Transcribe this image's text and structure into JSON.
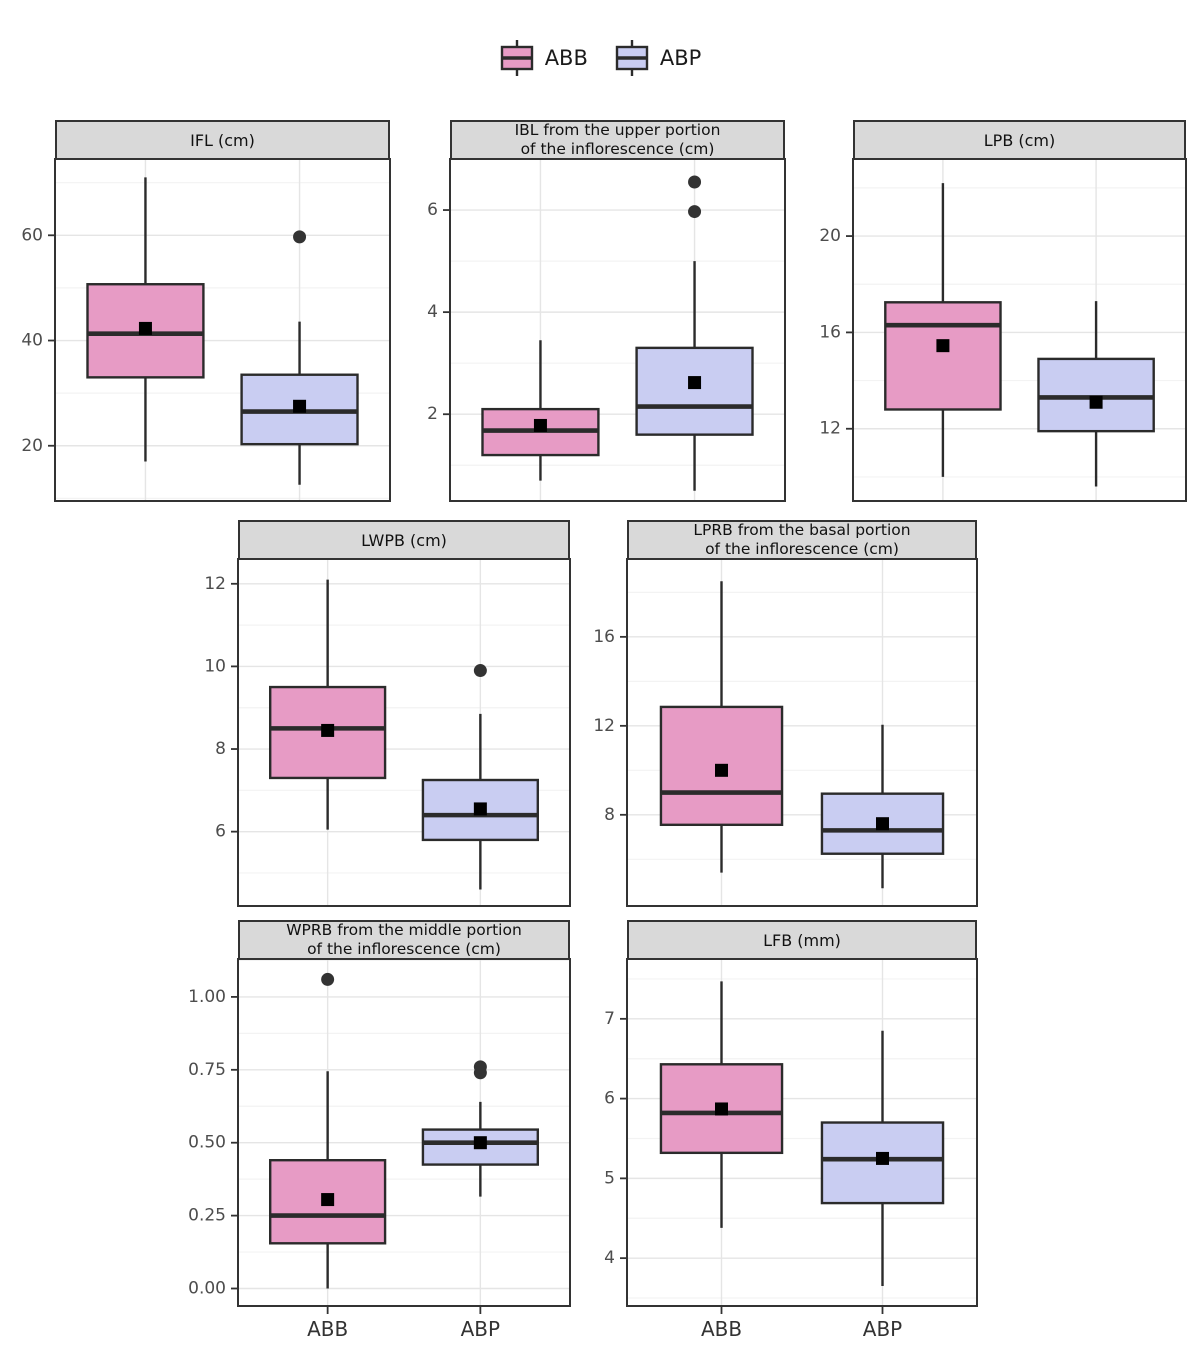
{
  "legend": {
    "items": [
      {
        "label": "ABB",
        "color_key": "abb"
      },
      {
        "label": "ABP",
        "color_key": "abp"
      }
    ]
  },
  "colors": {
    "abb": "#E79BC5",
    "abp": "#C9CDF2",
    "box_stroke": "#2B2B2B",
    "outlier": "#333333",
    "mean_marker": "#000000",
    "strip_bg": "#D9D9D9",
    "panel_border": "#333333",
    "grid_major": "#E5E5E5",
    "grid_minor": "#F3F3F3",
    "tick_label": "#4D4D4D",
    "axis_label": "#333333"
  },
  "chart_data": {
    "type": "boxplot",
    "categories": [
      "ABB",
      "ABP"
    ],
    "panels": [
      {
        "title_lines": [
          "IFL (cm)"
        ],
        "ylim": [
          9.5,
          74.5
        ],
        "yticks": [
          20,
          40,
          60
        ],
        "ytick_labels": [
          "20",
          "40",
          "60"
        ],
        "show_x_labels": false,
        "series": [
          {
            "name": "ABB",
            "color": "abb",
            "whisker_low": 17,
            "q1": 33,
            "median": 41.3,
            "mean": 42.3,
            "q3": 50.7,
            "whisker_high": 71,
            "outliers": []
          },
          {
            "name": "ABP",
            "color": "abp",
            "whisker_low": 12.6,
            "q1": 20.3,
            "median": 26.5,
            "mean": 27.5,
            "q3": 33.5,
            "whisker_high": 43.6,
            "outliers": [
              59.7
            ]
          }
        ]
      },
      {
        "title_lines": [
          "IBL from the upper portion",
          "of the inflorescence (cm)"
        ],
        "ylim": [
          0.3,
          7.0
        ],
        "yticks": [
          2,
          4,
          6
        ],
        "ytick_labels": [
          "2",
          "4",
          "6"
        ],
        "show_x_labels": false,
        "series": [
          {
            "name": "ABB",
            "color": "abb",
            "whisker_low": 0.7,
            "q1": 1.2,
            "median": 1.68,
            "mean": 1.78,
            "q3": 2.1,
            "whisker_high": 3.45,
            "outliers": []
          },
          {
            "name": "ABP",
            "color": "abp",
            "whisker_low": 0.5,
            "q1": 1.6,
            "median": 2.15,
            "mean": 2.62,
            "q3": 3.3,
            "whisker_high": 5.0,
            "outliers": [
              5.97,
              6.55
            ]
          }
        ]
      },
      {
        "title_lines": [
          "LPB (cm)"
        ],
        "ylim": [
          9.0,
          23.2
        ],
        "yticks": [
          12,
          16,
          20
        ],
        "ytick_labels": [
          "12",
          "16",
          "20"
        ],
        "show_x_labels": false,
        "series": [
          {
            "name": "ABB",
            "color": "abb",
            "whisker_low": 10.0,
            "q1": 12.8,
            "median": 16.3,
            "mean": 15.45,
            "q3": 17.25,
            "whisker_high": 22.2,
            "outliers": []
          },
          {
            "name": "ABP",
            "color": "abp",
            "whisker_low": 9.6,
            "q1": 11.9,
            "median": 13.3,
            "mean": 13.1,
            "q3": 14.9,
            "whisker_high": 17.3,
            "outliers": []
          }
        ]
      },
      {
        "title_lines": [
          "LWPB (cm)"
        ],
        "ylim": [
          4.2,
          12.6
        ],
        "yticks": [
          6,
          8,
          10,
          12
        ],
        "ytick_labels": [
          "6",
          "8",
          "10",
          "12"
        ],
        "show_x_labels": false,
        "series": [
          {
            "name": "ABB",
            "color": "abb",
            "whisker_low": 6.05,
            "q1": 7.3,
            "median": 8.5,
            "mean": 8.45,
            "q3": 9.5,
            "whisker_high": 12.1,
            "outliers": []
          },
          {
            "name": "ABP",
            "color": "abp",
            "whisker_low": 4.6,
            "q1": 5.8,
            "median": 6.4,
            "mean": 6.55,
            "q3": 7.25,
            "whisker_high": 8.85,
            "outliers": [
              9.9
            ]
          }
        ]
      },
      {
        "title_lines": [
          "LPRB from the basal portion",
          "of the inflorescence (cm)"
        ],
        "ylim": [
          3.9,
          19.5
        ],
        "yticks": [
          8,
          12,
          16
        ],
        "ytick_labels": [
          "8",
          "12",
          "16"
        ],
        "show_x_labels": false,
        "series": [
          {
            "name": "ABB",
            "color": "abb",
            "whisker_low": 5.4,
            "q1": 7.55,
            "median": 9.0,
            "mean": 10.0,
            "q3": 12.85,
            "whisker_high": 18.5,
            "outliers": []
          },
          {
            "name": "ABP",
            "color": "abp",
            "whisker_low": 4.7,
            "q1": 6.25,
            "median": 7.3,
            "mean": 7.6,
            "q3": 8.95,
            "whisker_high": 12.05,
            "outliers": []
          }
        ]
      },
      {
        "title_lines": [
          "WPRB from the middle portion",
          "of the inflorescence (cm)"
        ],
        "ylim": [
          -0.06,
          1.13
        ],
        "yticks": [
          0.0,
          0.25,
          0.5,
          0.75,
          1.0
        ],
        "ytick_labels": [
          "0.00",
          "0.25",
          "0.50",
          "0.75",
          "1.00"
        ],
        "show_x_labels": true,
        "series": [
          {
            "name": "ABB",
            "color": "abb",
            "whisker_low": 0.0,
            "q1": 0.155,
            "median": 0.25,
            "mean": 0.305,
            "q3": 0.44,
            "whisker_high": 0.745,
            "outliers": [
              1.06
            ]
          },
          {
            "name": "ABP",
            "color": "abp",
            "whisker_low": 0.315,
            "q1": 0.425,
            "median": 0.5,
            "mean": 0.5,
            "q3": 0.545,
            "whisker_high": 0.64,
            "outliers": [
              0.74,
              0.76
            ]
          }
        ]
      },
      {
        "title_lines": [
          "LFB (mm)"
        ],
        "ylim": [
          3.4,
          7.75
        ],
        "yticks": [
          4,
          5,
          6,
          7
        ],
        "ytick_labels": [
          "4",
          "5",
          "6",
          "7"
        ],
        "show_x_labels": true,
        "series": [
          {
            "name": "ABB",
            "color": "abb",
            "whisker_low": 4.38,
            "q1": 5.32,
            "median": 5.82,
            "mean": 5.87,
            "q3": 6.43,
            "whisker_high": 7.47,
            "outliers": []
          },
          {
            "name": "ABP",
            "color": "abp",
            "whisker_low": 3.65,
            "q1": 4.69,
            "median": 5.24,
            "mean": 5.25,
            "q3": 5.7,
            "whisker_high": 6.85,
            "outliers": []
          }
        ]
      }
    ]
  }
}
